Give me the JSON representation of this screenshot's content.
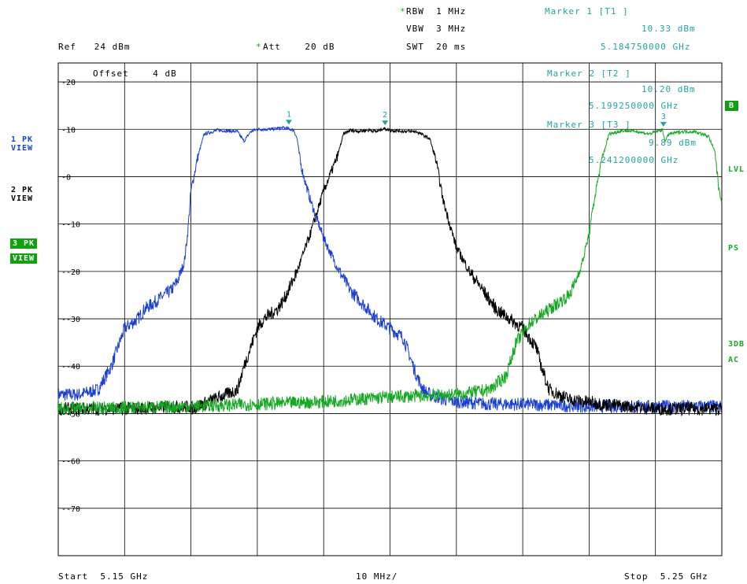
{
  "header": {
    "rbw": "RBW  1 MHz",
    "vbw": "VBW  3 MHz",
    "swt": "SWT  20 ms",
    "ref": "Ref   24 dBm",
    "att": "Att    20 dB",
    "star": "*",
    "offset": "Offset    4 dB"
  },
  "markers": [
    {
      "title": "Marker 1 [T1 ]",
      "level": "10.33 dBm",
      "freq": "5.184750000 GHz"
    },
    {
      "title": "Marker 2 [T2 ]",
      "level": "10.20 dBm",
      "freq": "5.199250000 GHz"
    },
    {
      "title": "Marker 3 [T3 ]",
      "level": "9.89 dBm",
      "freq": "5.241200000 GHz"
    }
  ],
  "left_labels": [
    {
      "line1": "1 PK",
      "line2": "VIEW",
      "color": "#1a3fd6"
    },
    {
      "line1": "2 PK",
      "line2": "VIEW",
      "color": "#000000"
    },
    {
      "line1": "3 PK",
      "line2": "VIEW",
      "color": "#15a822"
    }
  ],
  "right_labels": {
    "b": "B",
    "lvl": "LVL",
    "ps": "PS",
    "db3": "3DB",
    "ac": "AC"
  },
  "footer": {
    "start": "Start  5.15 GHz",
    "div": "10 MHz/",
    "stop": "Stop  5.25 GHz"
  },
  "chart_data": {
    "type": "line",
    "title": "",
    "xlabel": "",
    "ylabel": "",
    "xlim_ghz": [
      5.15,
      5.25
    ],
    "ylim_dbm": [
      -80,
      24
    ],
    "y_ticks": [
      20,
      10,
      0,
      -10,
      -20,
      -30,
      -40,
      -50,
      -60,
      -70
    ],
    "y_tick_labels": [
      "20",
      "10",
      "0",
      "-10",
      "-20",
      "-30",
      "-40",
      "-50",
      "-60",
      "-70"
    ],
    "grid": true,
    "series": [
      {
        "color": "#1a3fd6",
        "x_ghz": [
          5.15,
          5.153,
          5.156,
          5.158,
          5.16,
          5.162,
          5.163,
          5.165,
          5.166,
          5.167,
          5.168,
          5.169,
          5.1695,
          5.17,
          5.171,
          5.172,
          5.174,
          5.176,
          5.177,
          5.178,
          5.179,
          5.18,
          5.182,
          5.184,
          5.1855,
          5.186,
          5.1865,
          5.187,
          5.188,
          5.189,
          5.19,
          5.192,
          5.194,
          5.196,
          5.198,
          5.2,
          5.202,
          5.204,
          5.205,
          5.206,
          5.208,
          5.21,
          5.215,
          5.22,
          5.23,
          5.24,
          5.25
        ],
        "y_dbm": [
          -46,
          -46,
          -45,
          -40,
          -32,
          -30,
          -28,
          -26,
          -25,
          -24,
          -22,
          -18,
          -12,
          -3,
          4,
          9,
          9.8,
          9.6,
          9.5,
          7.5,
          9.5,
          10,
          10,
          10.33,
          9.8,
          8,
          3,
          0,
          -5,
          -9,
          -13,
          -19,
          -24,
          -27,
          -30,
          -32,
          -34,
          -42,
          -45,
          -46,
          -47,
          -47.5,
          -48,
          -48,
          -48.5,
          -48.5,
          -48.5
        ]
      },
      {
        "color": "#000000",
        "x_ghz": [
          5.15,
          5.16,
          5.17,
          5.17,
          5.177,
          5.178,
          5.179,
          5.18,
          5.181,
          5.183,
          5.184,
          5.186,
          5.188,
          5.19,
          5.192,
          5.193,
          5.194,
          5.195,
          5.197,
          5.198,
          5.199,
          5.2,
          5.202,
          5.204,
          5.206,
          5.207,
          5.208,
          5.21,
          5.212,
          5.214,
          5.216,
          5.218,
          5.22,
          5.222,
          5.223,
          5.224,
          5.227,
          5.232,
          5.24,
          5.25
        ],
        "y_dbm": [
          -49,
          -49,
          -48.5,
          -49,
          -45,
          -40,
          -36,
          -32,
          -30,
          -28,
          -26,
          -20,
          -12,
          -3,
          4,
          9,
          9.8,
          9.6,
          9.8,
          9.5,
          10.2,
          9.8,
          9.6,
          9.5,
          8,
          3,
          -5,
          -15,
          -20,
          -24,
          -28,
          -30,
          -32,
          -36,
          -41,
          -45,
          -47,
          -48,
          -49,
          -49
        ]
      },
      {
        "color": "#15a822",
        "x_ghz": [
          5.15,
          5.17,
          5.19,
          5.2,
          5.21,
          5.215,
          5.2175,
          5.219,
          5.221,
          5.223,
          5.225,
          5.227,
          5.228,
          5.229,
          5.23,
          5.231,
          5.232,
          5.233,
          5.235,
          5.237,
          5.239,
          5.241,
          5.2415,
          5.242,
          5.244,
          5.246,
          5.248,
          5.249,
          5.2495,
          5.25
        ],
        "y_dbm": [
          -49,
          -48.5,
          -47.5,
          -46.5,
          -46,
          -45,
          -42,
          -35,
          -31,
          -29,
          -27,
          -25,
          -22,
          -18,
          -12,
          -3,
          4,
          9,
          9.7,
          9.6,
          9,
          9.89,
          7.5,
          9,
          9.5,
          9.5,
          8.5,
          5,
          -2,
          -5
        ]
      }
    ],
    "markers": [
      {
        "label": "1",
        "x_ghz": 5.18475,
        "y_dbm": 10.33,
        "color": "#1a3fd6"
      },
      {
        "label": "2",
        "x_ghz": 5.19925,
        "y_dbm": 10.2,
        "color": "#000000"
      },
      {
        "label": "3",
        "x_ghz": 5.2412,
        "y_dbm": 9.89,
        "color": "#15a822"
      }
    ]
  }
}
